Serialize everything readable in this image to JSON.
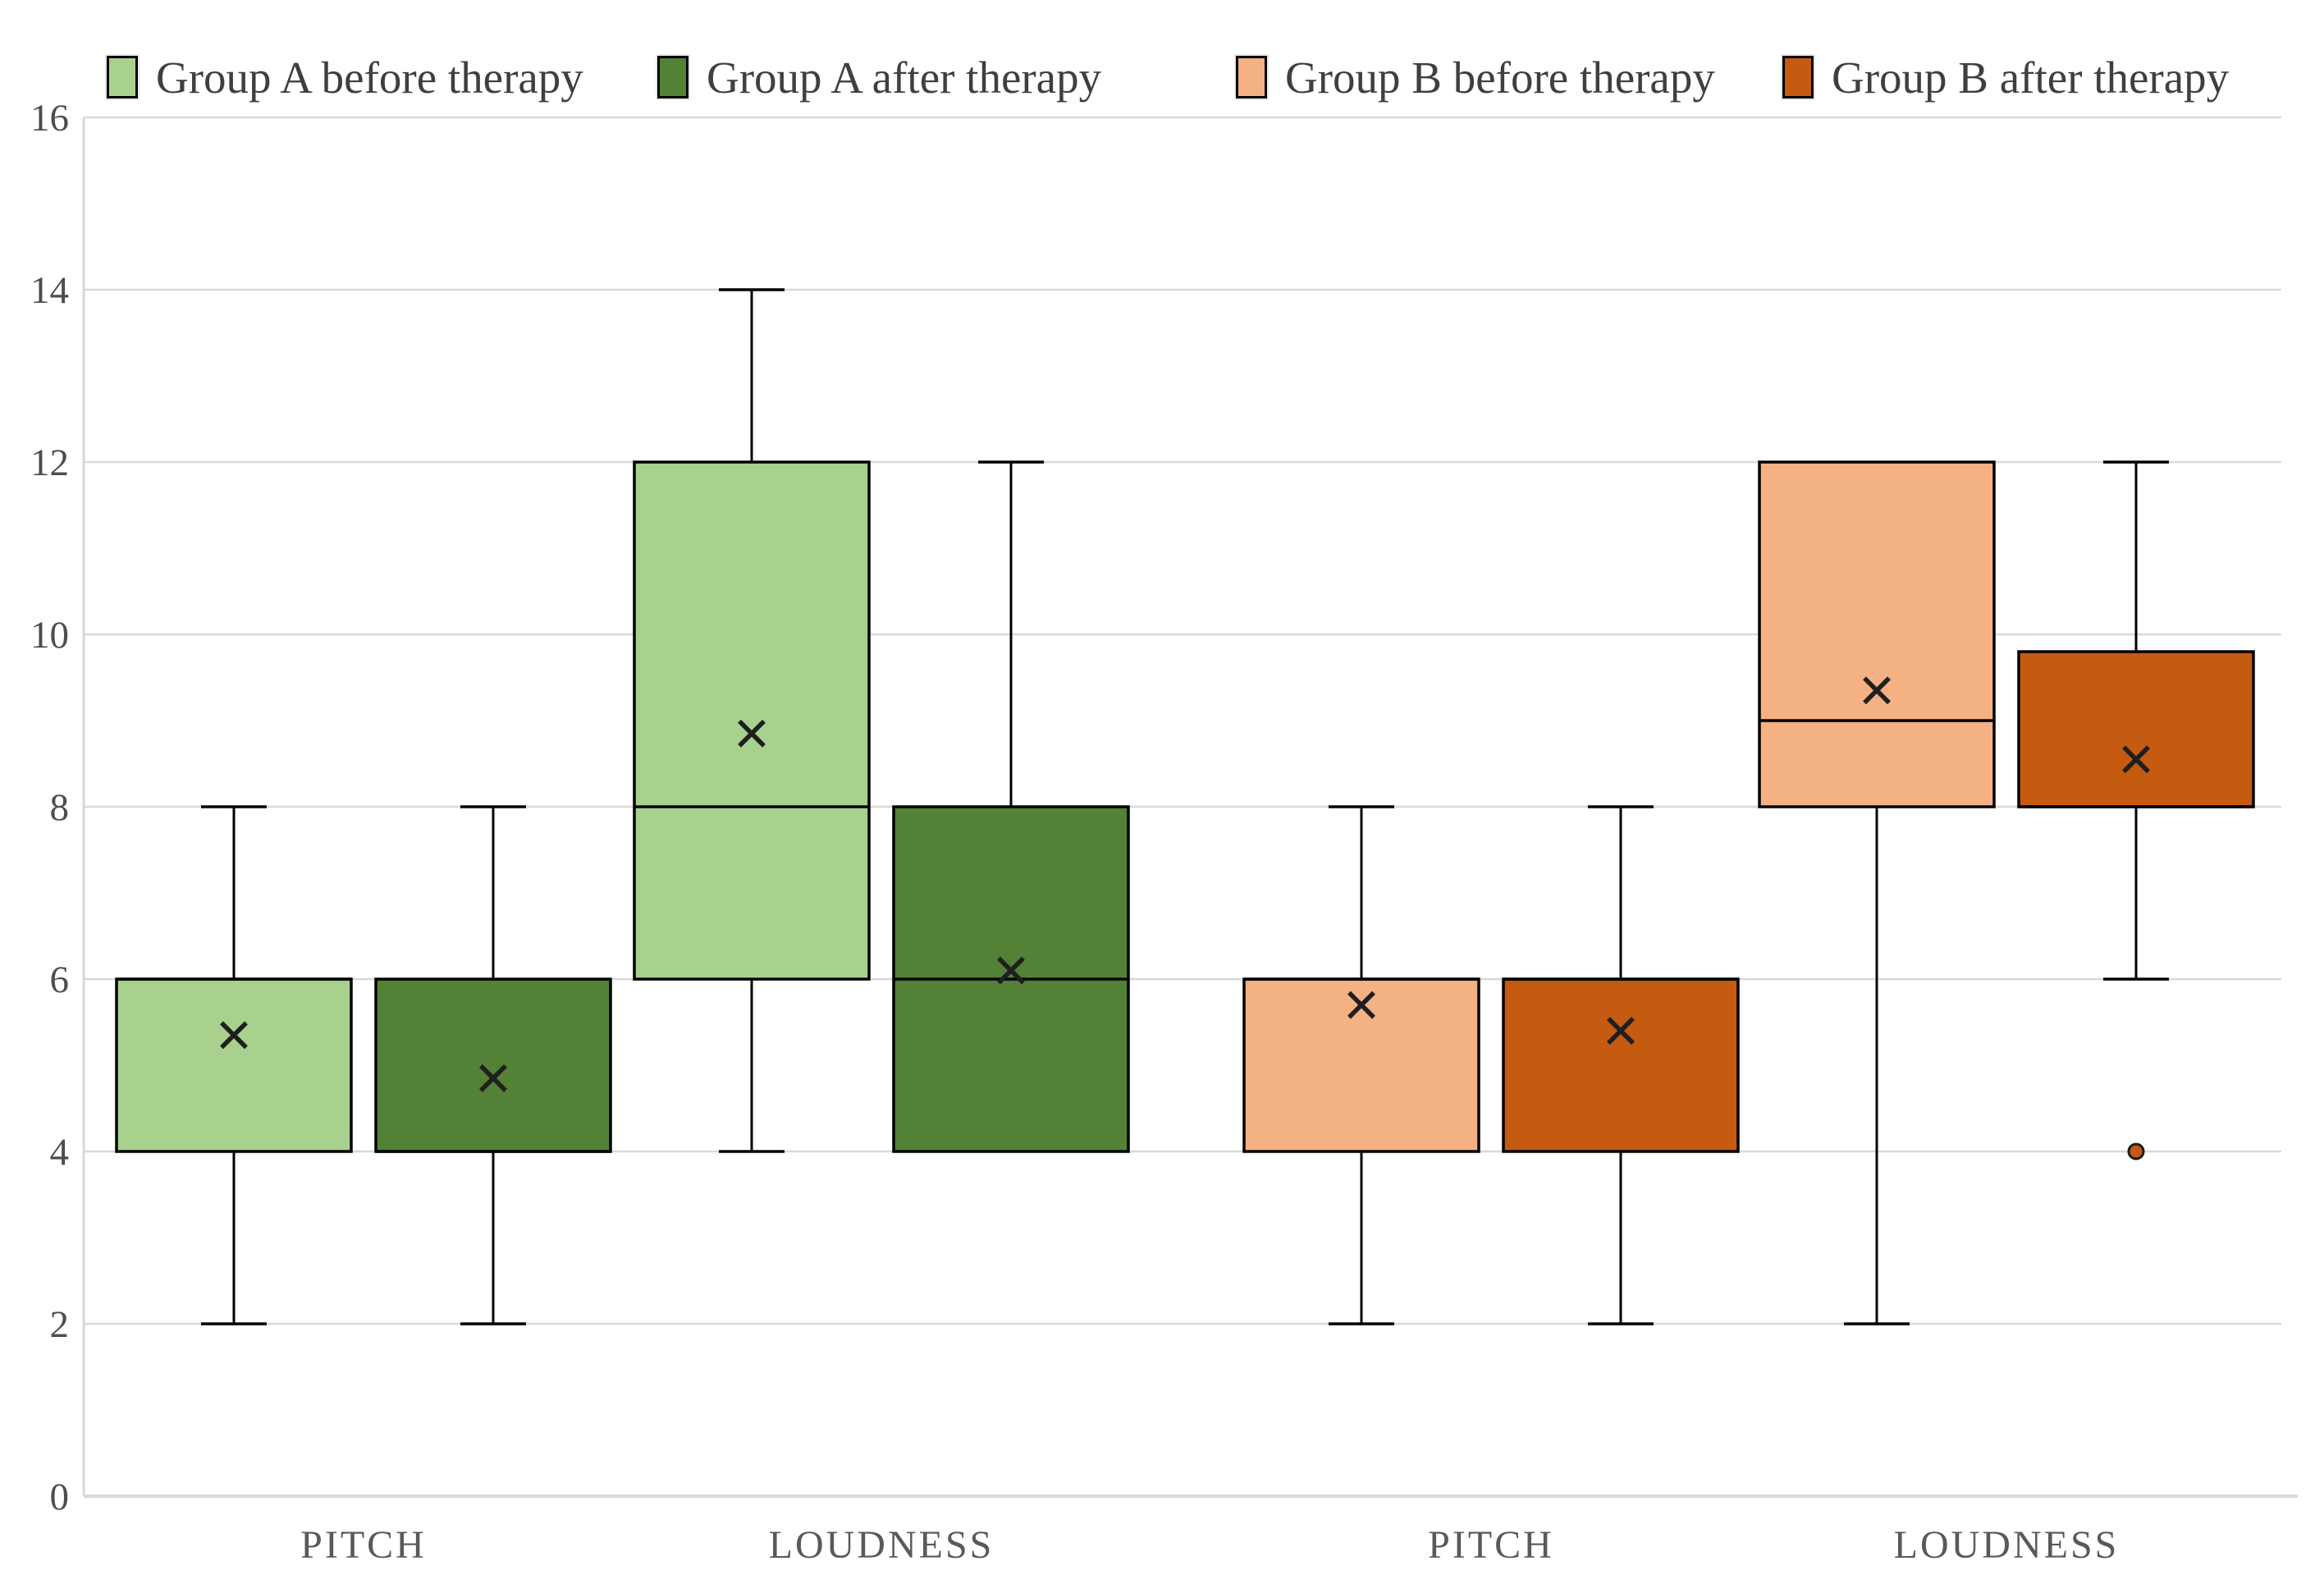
{
  "chart_data": {
    "type": "boxplot",
    "title": "",
    "xlabel": "",
    "ylabel": "",
    "ylim": [
      0,
      16
    ],
    "yticks": [
      0,
      2,
      4,
      6,
      8,
      10,
      12,
      14,
      16
    ],
    "grid": "horizontal",
    "legend_position": "top",
    "categories": [
      "PITCH",
      "LOUDNESS",
      "PITCH",
      "LOUDNESS"
    ],
    "series": [
      {
        "name": "Group A before therapy",
        "color": "#a9d18e",
        "boxes": [
          {
            "category": 0,
            "min": 2,
            "q1": 4,
            "median": 6,
            "q3": 6,
            "max": 8,
            "mean": 5.35,
            "outliers": []
          },
          {
            "category": 1,
            "min": 4,
            "q1": 6,
            "median": 8,
            "q3": 12,
            "max": 14,
            "mean": 8.85,
            "outliers": []
          }
        ]
      },
      {
        "name": "Group A after therapy",
        "color": "#538135",
        "boxes": [
          {
            "category": 0,
            "min": 2,
            "q1": 4,
            "median": 4,
            "q3": 6,
            "max": 8,
            "mean": 4.85,
            "outliers": []
          },
          {
            "category": 1,
            "min": 4,
            "q1": 4,
            "median": 6,
            "q3": 8,
            "max": 12,
            "mean": 6.1,
            "outliers": []
          }
        ]
      },
      {
        "name": "Group B before therapy",
        "color": "#f4b183",
        "boxes": [
          {
            "category": 2,
            "min": 2,
            "q1": 4,
            "median": 6,
            "q3": 6,
            "max": 8,
            "mean": 5.7,
            "outliers": []
          },
          {
            "category": 3,
            "min": 2,
            "q1": 8,
            "median": 9,
            "q3": 12,
            "max": 12,
            "mean": 9.35,
            "outliers": []
          }
        ]
      },
      {
        "name": "Group B after therapy",
        "color": "#c55a11",
        "boxes": [
          {
            "category": 2,
            "min": 2,
            "q1": 4,
            "median": 6,
            "q3": 6,
            "max": 8,
            "mean": 5.4,
            "outliers": []
          },
          {
            "category": 3,
            "min": 6,
            "q1": 8,
            "median": 8,
            "q3": 9.8,
            "max": 12,
            "mean": 8.55,
            "outliers": [
              4
            ]
          }
        ]
      }
    ],
    "style_colors": {
      "gridline": "#d9d9d9",
      "axis_line": "#d9d9d9",
      "box_border": "#000000",
      "whisker": "#000000",
      "mean_marker": "#1f1f1f",
      "tick_text": "#4d4d4d",
      "category_text": "#595959",
      "legend_text": "#3f3f3f"
    }
  }
}
